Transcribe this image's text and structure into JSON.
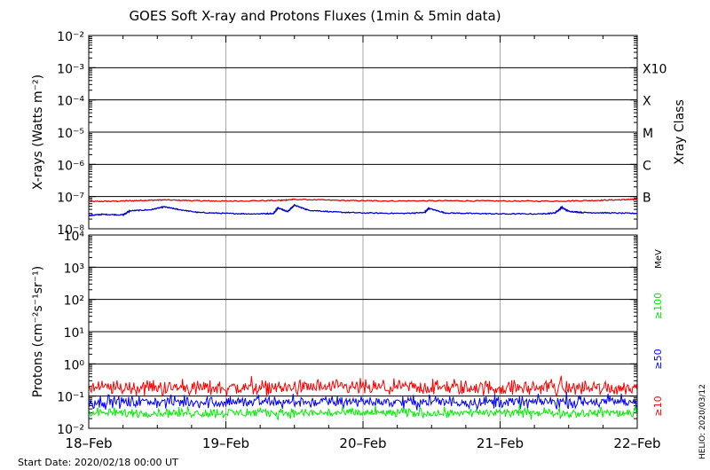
{
  "title": "GOES Soft X-ray and Protons Fluxes   (1min & 5min data)",
  "footer": {
    "start_date": "Start Date: 2020/02/18 00:00 UT",
    "stamp": "HELIO: 2020/03/12"
  },
  "colors": {
    "xray_long": "#e00000",
    "xray_short": "#0000cc",
    "proton_10": "#ff0000",
    "proton_50": "#0000ff",
    "proton_100": "#00ee00",
    "grid_vertical": "#aaaaaa"
  },
  "chart_data": [
    {
      "type": "line",
      "panel": "xray",
      "ylabel": "X-rays (Watts m⁻²)",
      "yscale": "log",
      "ylim": [
        1e-08,
        0.01
      ],
      "ytick_labels": [
        "10⁻²",
        "10⁻³",
        "10⁻⁴",
        "10⁻⁵",
        "10⁻⁶",
        "10⁻⁷",
        "10⁻⁸"
      ],
      "right_label": "Xray Class",
      "class_labels": [
        {
          "label": "X10",
          "flux": 0.001
        },
        {
          "label": "X",
          "flux": 0.0001
        },
        {
          "label": "M",
          "flux": 1e-05
        },
        {
          "label": "C",
          "flux": 1e-06
        },
        {
          "label": "B",
          "flux": 1e-07
        }
      ],
      "grid": true,
      "series": [
        {
          "key": "long",
          "color": "#e00000",
          "x": [
            0,
            0.2,
            0.4,
            0.55,
            0.8,
            1.0,
            1.4,
            1.5,
            1.9,
            2.2,
            2.6,
            3.0,
            3.4,
            3.7,
            3.9,
            4.0
          ],
          "values": [
            7e-08,
            7.2e-08,
            7.6e-08,
            7.9e-08,
            7.4e-08,
            7.2e-08,
            7.6e-08,
            8.2e-08,
            7.5e-08,
            7.3e-08,
            7.4e-08,
            7.3e-08,
            7.2e-08,
            7.6e-08,
            8e-08,
            8.2e-08
          ]
        },
        {
          "key": "short",
          "color": "#0000cc",
          "x": [
            0,
            0.1,
            0.25,
            0.3,
            0.45,
            0.55,
            0.65,
            0.8,
            1.0,
            1.2,
            1.35,
            1.38,
            1.45,
            1.5,
            1.6,
            1.8,
            2.0,
            2.3,
            2.45,
            2.48,
            2.6,
            2.8,
            3.0,
            3.3,
            3.4,
            3.45,
            3.5,
            3.6,
            3.8,
            4.0
          ],
          "values": [
            2.6e-08,
            2.8e-08,
            2.7e-08,
            3.6e-08,
            3.9e-08,
            4.8e-08,
            4e-08,
            3.2e-08,
            3e-08,
            2.9e-08,
            3e-08,
            4.5e-08,
            3.4e-08,
            5.4e-08,
            3.8e-08,
            3.3e-08,
            3.1e-08,
            3e-08,
            3.2e-08,
            4.3e-08,
            3.1e-08,
            3e-08,
            2.9e-08,
            2.9e-08,
            3.1e-08,
            4.6e-08,
            3.5e-08,
            3.2e-08,
            3.1e-08,
            3e-08
          ]
        }
      ]
    },
    {
      "type": "line",
      "panel": "protons",
      "ylabel": "Protons (cm⁻²s⁻¹sr⁻¹)",
      "yscale": "log",
      "ylim": [
        0.01,
        10000
      ],
      "ytick_labels": [
        "10⁴",
        "10³",
        "10²",
        "10¹",
        "10⁰",
        "10⁻¹",
        "10⁻²"
      ],
      "right_unit": "MeV",
      "threshold": 10,
      "grid": true,
      "series": [
        {
          "name": "≥10",
          "color": "#ff0000",
          "mean": 0.18,
          "noise_decades": 0.35
        },
        {
          "name": "≥50",
          "color": "#0000ff",
          "mean": 0.065,
          "noise_decades": 0.28
        },
        {
          "name": "≥100",
          "color": "#00ee00",
          "mean": 0.03,
          "noise_decades": 0.22
        }
      ]
    }
  ],
  "x_axis": {
    "categories": [
      "18–Feb",
      "19–Feb",
      "20–Feb",
      "21–Feb",
      "22–Feb"
    ],
    "xlim": [
      0,
      4
    ]
  }
}
